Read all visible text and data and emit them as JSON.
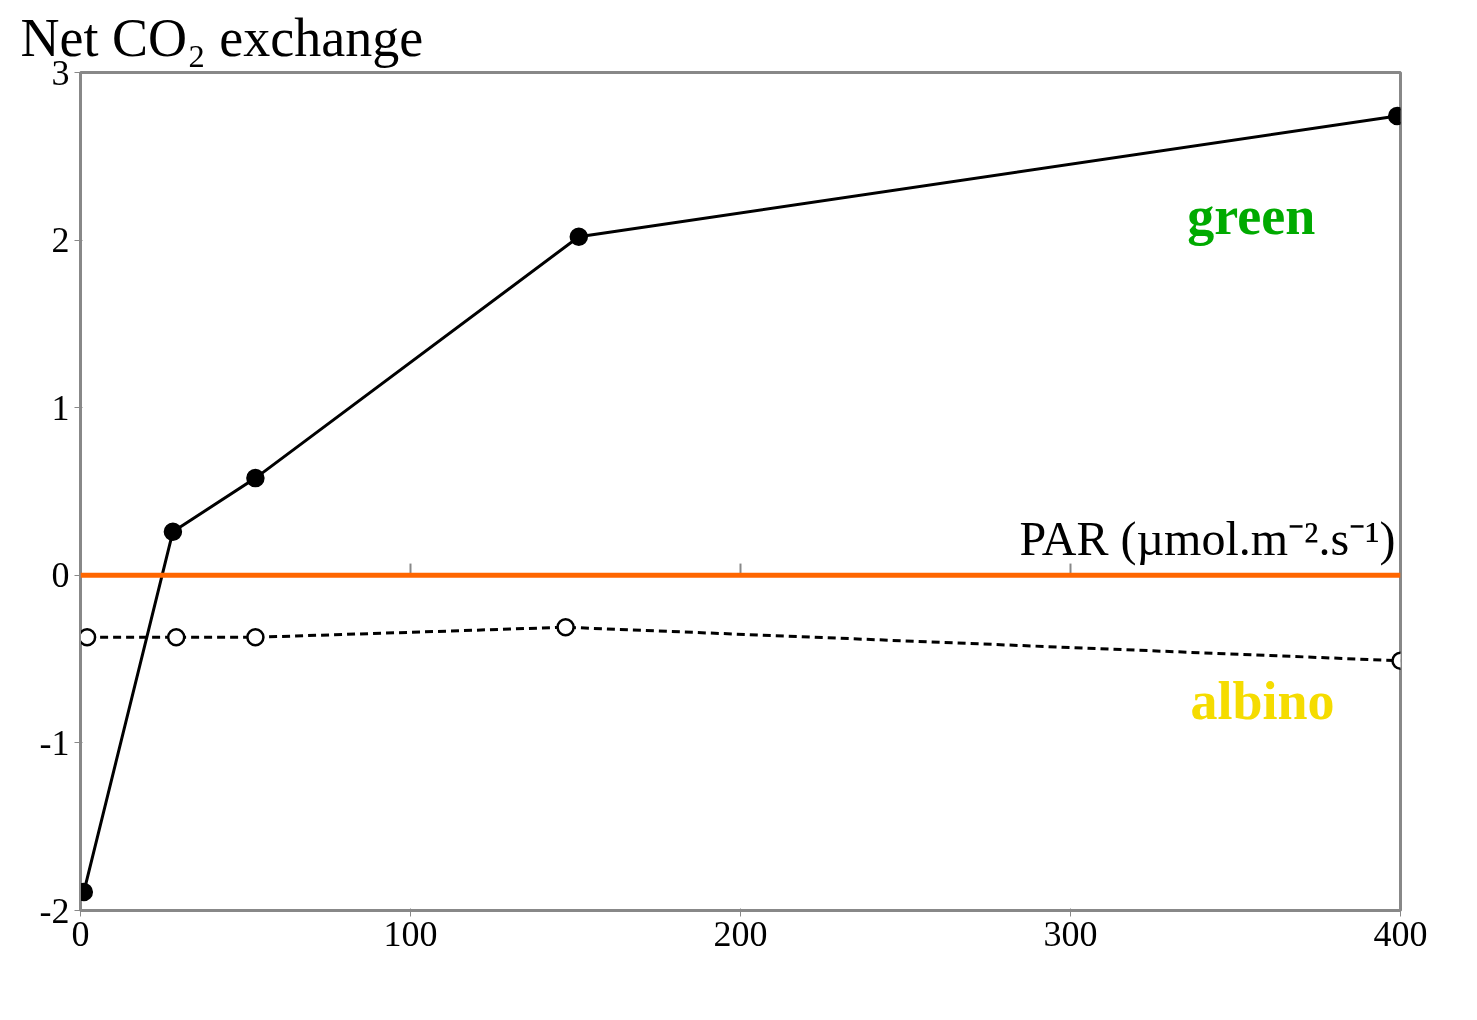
{
  "chart_data": {
    "type": "line",
    "ylabel": "Net CO₂ exchange",
    "xlabel": "PAR (µmol.m⁻².s⁻¹)",
    "xlim": [
      0,
      400
    ],
    "ylim": [
      -2,
      3
    ],
    "xticks": [
      0,
      100,
      200,
      300,
      400
    ],
    "yticks": [
      -2,
      -1,
      0,
      1,
      2,
      3
    ],
    "grid": false,
    "marker": "circle",
    "ref_lines": [
      {
        "axis": "y",
        "value": 0,
        "color": "#ff6600"
      }
    ],
    "series": [
      {
        "name": "green",
        "color": "#000000",
        "line_style": "solid",
        "x": [
          1,
          28,
          53,
          151,
          399
        ],
        "values": [
          -1.89,
          0.26,
          0.58,
          2.02,
          2.74
        ]
      },
      {
        "name": "albino",
        "color": "#000000",
        "line_style": "dashed",
        "x": [
          2,
          29,
          53,
          147,
          400
        ],
        "values": [
          -0.37,
          -0.37,
          -0.37,
          -0.31,
          -0.51
        ]
      }
    ]
  }
}
